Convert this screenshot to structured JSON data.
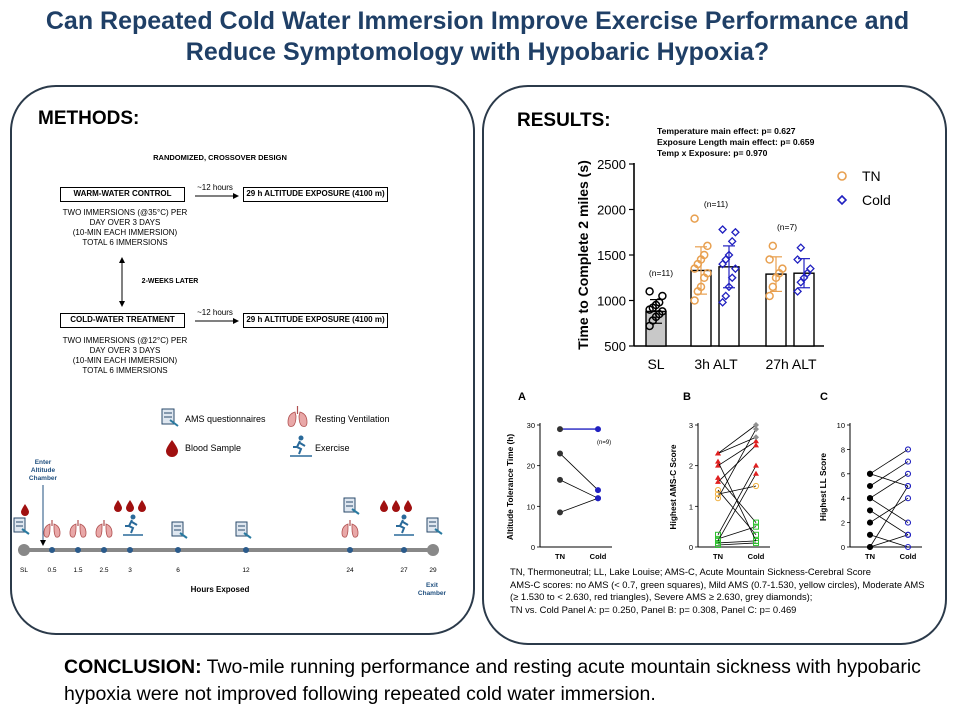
{
  "title": {
    "line1": "Can Repeated Cold Water Immersion Improve Exercise Performance and",
    "line2": "Reduce Symptomology with Hypobaric Hypoxia?"
  },
  "methods": {
    "heading": "METHODS:",
    "design": "RANDOMIZED, CROSSOVER DESIGN",
    "warm_box": "WARM-WATER CONTROL",
    "warm_desc": [
      "TWO IMMERSIONS (@35°C) PER",
      "DAY OVER 3 DAYS",
      "(10-MIN EACH IMMERSION)",
      "TOTAL 6 IMMERSIONS"
    ],
    "cold_box": "COLD-WATER TREATMENT",
    "cold_desc": [
      "TWO IMMERSIONS (@12°C) PER",
      "DAY OVER 3 DAYS",
      "(10-MIN EACH IMMERSION)",
      "TOTAL 6 IMMERSIONS"
    ],
    "twelve_hours": "~12 hours",
    "altitude_box": "29 h ALTITUDE EXPOSURE (4100 m)",
    "two_weeks": "2-WEEKS LATER",
    "legend": {
      "ams": "AMS questionnaires",
      "ventilation": "Resting Ventilation",
      "blood": "Blood Sample",
      "exercise": "Exercise"
    },
    "enter": [
      "Enter",
      "Altitude",
      "Chamber"
    ],
    "exit": [
      "Exit",
      "Chamber"
    ],
    "timeline_ticks": [
      "SL",
      "0.5",
      "1.5",
      "2.5",
      "3",
      "6",
      "12",
      "24",
      "27",
      "29"
    ],
    "hours_label": "Hours Exposed"
  },
  "results": {
    "heading": "RESULTS:",
    "stats": [
      "Temperature main effect: p= 0.627",
      "Exposure Length main effect: p= 0.659",
      "Temp x Exposure: p= 0.970"
    ],
    "legend_tn": "TN",
    "legend_cold": "Cold",
    "n_labels": [
      "(n=11)",
      "(n=11)",
      "(n=7)"
    ],
    "panel_letters": [
      "A",
      "B",
      "C"
    ],
    "panelA_n": "(n=9)",
    "notes": [
      "TN, Thermoneutral; LL, Lake Louise; AMS-C, Acute Mountain Sickness-Cerebral Score",
      "AMS-C scores: no AMS (< 0.7, green squares), Mild AMS (0.7-1.530, yellow circles), Moderate AMS",
      "(≥ 1.530 to < 2.630, red triangles), Severe AMS ≥ 2.630, grey diamonds);",
      "TN vs. Cold Panel A: p= 0.250, Panel B: p= 0.308, Panel C: p= 0.469"
    ]
  },
  "conclusion": {
    "label": "CONCLUSION:",
    "text": " Two-mile running performance and resting acute mountain sickness with hypobaric hypoxia were not improved following repeated cold water immersion."
  },
  "colors": {
    "title": "#1f3f66",
    "tn": "#e8a050",
    "cold": "#2020c0",
    "ams_none": "#30c030",
    "ams_mild": "#f0b040",
    "ams_moderate": "#e02020",
    "ams_severe": "#909090"
  },
  "chart_data": [
    {
      "type": "bar",
      "categories": [
        "SL",
        "3h ALT",
        "27h ALT"
      ],
      "ylabel": "Time to Complete 2 miles (s)",
      "ylim": [
        500,
        2500
      ],
      "yticks": [
        500,
        1000,
        1500,
        2000,
        2500
      ],
      "series": [
        {
          "name": "SL",
          "category": "SL",
          "mean": 880,
          "sd": 130,
          "points": [
            720,
            780,
            820,
            850,
            880,
            900,
            920,
            950,
            980,
            1050,
            1100
          ]
        },
        {
          "name": "TN",
          "category": "3h ALT",
          "mean": 1330,
          "sd": 260,
          "points": [
            1000,
            1100,
            1150,
            1250,
            1300,
            1350,
            1400,
            1450,
            1500,
            1600,
            1900
          ]
        },
        {
          "name": "Cold",
          "category": "3h ALT",
          "mean": 1370,
          "sd": 230,
          "points": [
            980,
            1050,
            1150,
            1250,
            1350,
            1400,
            1450,
            1500,
            1650,
            1750,
            1780
          ]
        },
        {
          "name": "TN",
          "category": "27h ALT",
          "mean": 1290,
          "sd": 190,
          "points": [
            1050,
            1150,
            1250,
            1300,
            1350,
            1450,
            1600
          ]
        },
        {
          "name": "Cold",
          "category": "27h ALT",
          "mean": 1300,
          "sd": 160,
          "points": [
            1100,
            1200,
            1250,
            1300,
            1350,
            1450,
            1580
          ]
        }
      ]
    },
    {
      "type": "line",
      "panel": "A",
      "ylabel": "Altitude Tolerance Time (h)",
      "categories": [
        "TN",
        "Cold"
      ],
      "ylim": [
        0,
        30
      ],
      "yticks": [
        0,
        10,
        20,
        30
      ],
      "pairs": [
        [
          29,
          29
        ],
        [
          23,
          14
        ],
        [
          16.5,
          12
        ],
        [
          8.5,
          12
        ]
      ]
    },
    {
      "type": "line",
      "panel": "B",
      "ylabel": "Highest AMS-C Score",
      "categories": [
        "TN",
        "Cold"
      ],
      "ylim": [
        0,
        3
      ],
      "yticks": [
        0,
        1,
        2,
        3
      ],
      "pairs": [
        [
          0.05,
          0.1
        ],
        [
          0.1,
          0.15
        ],
        [
          0.2,
          0.5
        ],
        [
          0.3,
          2.0
        ],
        [
          1.2,
          2.9
        ],
        [
          1.3,
          1.5
        ],
        [
          1.4,
          0.3
        ],
        [
          1.6,
          2.5
        ],
        [
          1.7,
          0.6
        ],
        [
          2.0,
          2.6
        ],
        [
          2.1,
          0.15
        ],
        [
          2.3,
          3.0
        ],
        [
          2.3,
          2.7
        ],
        [
          0.15,
          1.8
        ]
      ]
    },
    {
      "type": "line",
      "panel": "C",
      "ylabel": "Highest LL Score",
      "categories": [
        "TN",
        "Cold"
      ],
      "ylim": [
        0,
        10
      ],
      "yticks": [
        0,
        2,
        4,
        6,
        8,
        10
      ],
      "pairs": [
        [
          6,
          8
        ],
        [
          6,
          5
        ],
        [
          5,
          7
        ],
        [
          4,
          6
        ],
        [
          4,
          2
        ],
        [
          3,
          1
        ],
        [
          2,
          4
        ],
        [
          1,
          0
        ],
        [
          0,
          5
        ],
        [
          0,
          1
        ]
      ]
    }
  ]
}
